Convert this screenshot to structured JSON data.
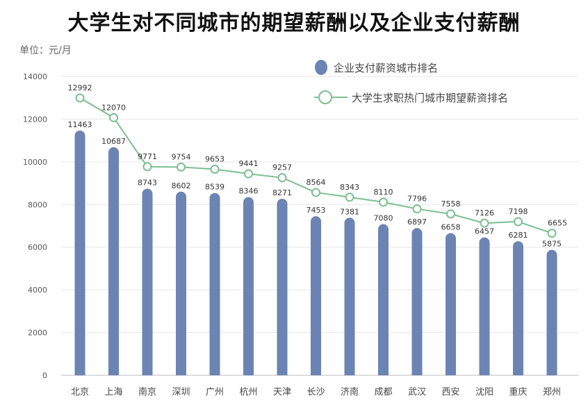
{
  "title": "大学生对不同城市的期望薪酬以及企业支付薪酬",
  "unit": "单位：元/月",
  "colors": {
    "bar": "#6b84b3",
    "line": "#7bbf8f",
    "marker_fill": "#ffffff",
    "grid": "#e6e6e6"
  },
  "chart_data": {
    "type": "bar",
    "title": "大学生对不同城市的期望薪酬以及企业支付薪酬",
    "ylabel": "单位：元/月",
    "ylim": [
      0,
      14000
    ],
    "yticks": [
      0,
      2000,
      4000,
      6000,
      8000,
      10000,
      12000,
      14000
    ],
    "grid": true,
    "legend_position": "top-right",
    "categories": [
      "北京",
      "上海",
      "南京",
      "深圳",
      "广州",
      "杭州",
      "天津",
      "长沙",
      "济南",
      "成都",
      "武汉",
      "西安",
      "沈阳",
      "重庆",
      "郑州"
    ],
    "series": [
      {
        "name": "企业支付薪资城市排名",
        "type": "bar",
        "values": [
          11463,
          10687,
          8743,
          8602,
          8539,
          8346,
          8271,
          7453,
          7381,
          7080,
          6897,
          6658,
          6457,
          6281,
          5875
        ]
      },
      {
        "name": "大学生求职热门城市期望薪资排名",
        "type": "line",
        "values": [
          12992,
          12070,
          9771,
          9754,
          9653,
          9441,
          9257,
          8564,
          8343,
          8110,
          7796,
          7558,
          7126,
          7198,
          6655
        ]
      }
    ]
  }
}
